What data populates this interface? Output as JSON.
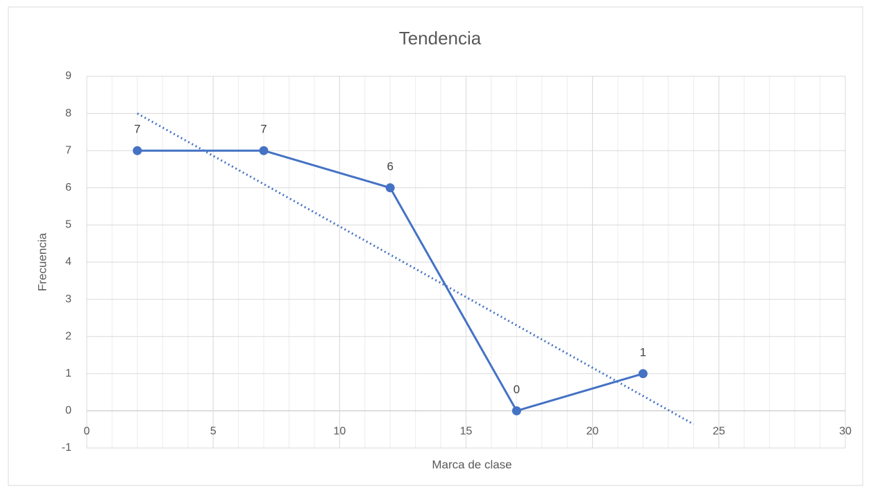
{
  "chart_data": {
    "type": "scatter_line",
    "title": "Tendencia",
    "x_label": "Marca de clase",
    "y_label": "Frecuencia",
    "x": [
      2,
      7,
      12,
      17,
      22
    ],
    "series": [
      {
        "name": "Frecuencia",
        "color": "#4472c4",
        "values": [
          7,
          7,
          6,
          0,
          1
        ]
      }
    ],
    "trendline": {
      "x": [
        2,
        24
      ],
      "values": [
        8,
        -0.36
      ],
      "color": "#4472c4",
      "style": "dotted"
    },
    "xlim": [
      0,
      30
    ],
    "xticks": [
      0,
      5,
      10,
      15,
      20,
      25,
      30
    ],
    "ylim": [
      -1,
      9
    ],
    "yticks": [
      -1,
      0,
      1,
      2,
      3,
      4,
      5,
      6,
      7,
      8,
      9
    ],
    "grid": true,
    "minor_grid": true,
    "data_labels": true
  }
}
